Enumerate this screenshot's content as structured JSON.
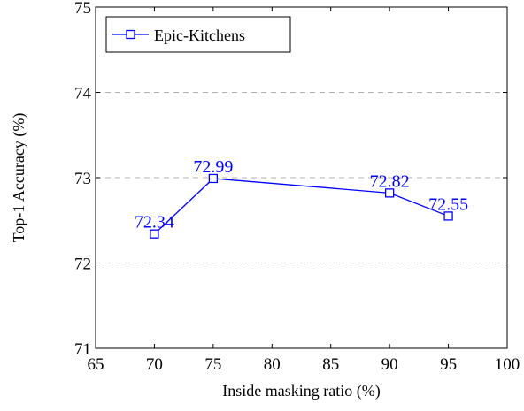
{
  "chart_data": {
    "type": "line",
    "xlabel": "Inside masking ratio (%)",
    "ylabel": "Top-1 Accuracy (%)",
    "xlim": [
      65,
      100
    ],
    "ylim": [
      71,
      75
    ],
    "xticks": [
      "65",
      "70",
      "75",
      "80",
      "85",
      "90",
      "95",
      "100"
    ],
    "yticks": [
      "71",
      "72",
      "73",
      "74",
      "75"
    ],
    "grid": "horizontal dashed",
    "legend_position": "top-left",
    "series": [
      {
        "name": "Epic-Kitchens",
        "color": "#0000ff",
        "marker": "square",
        "x": [
          70,
          75,
          90,
          95
        ],
        "y": [
          72.34,
          72.99,
          72.82,
          72.55
        ],
        "labels": [
          "72.34",
          "72.99",
          "72.82",
          "72.55"
        ]
      }
    ]
  }
}
